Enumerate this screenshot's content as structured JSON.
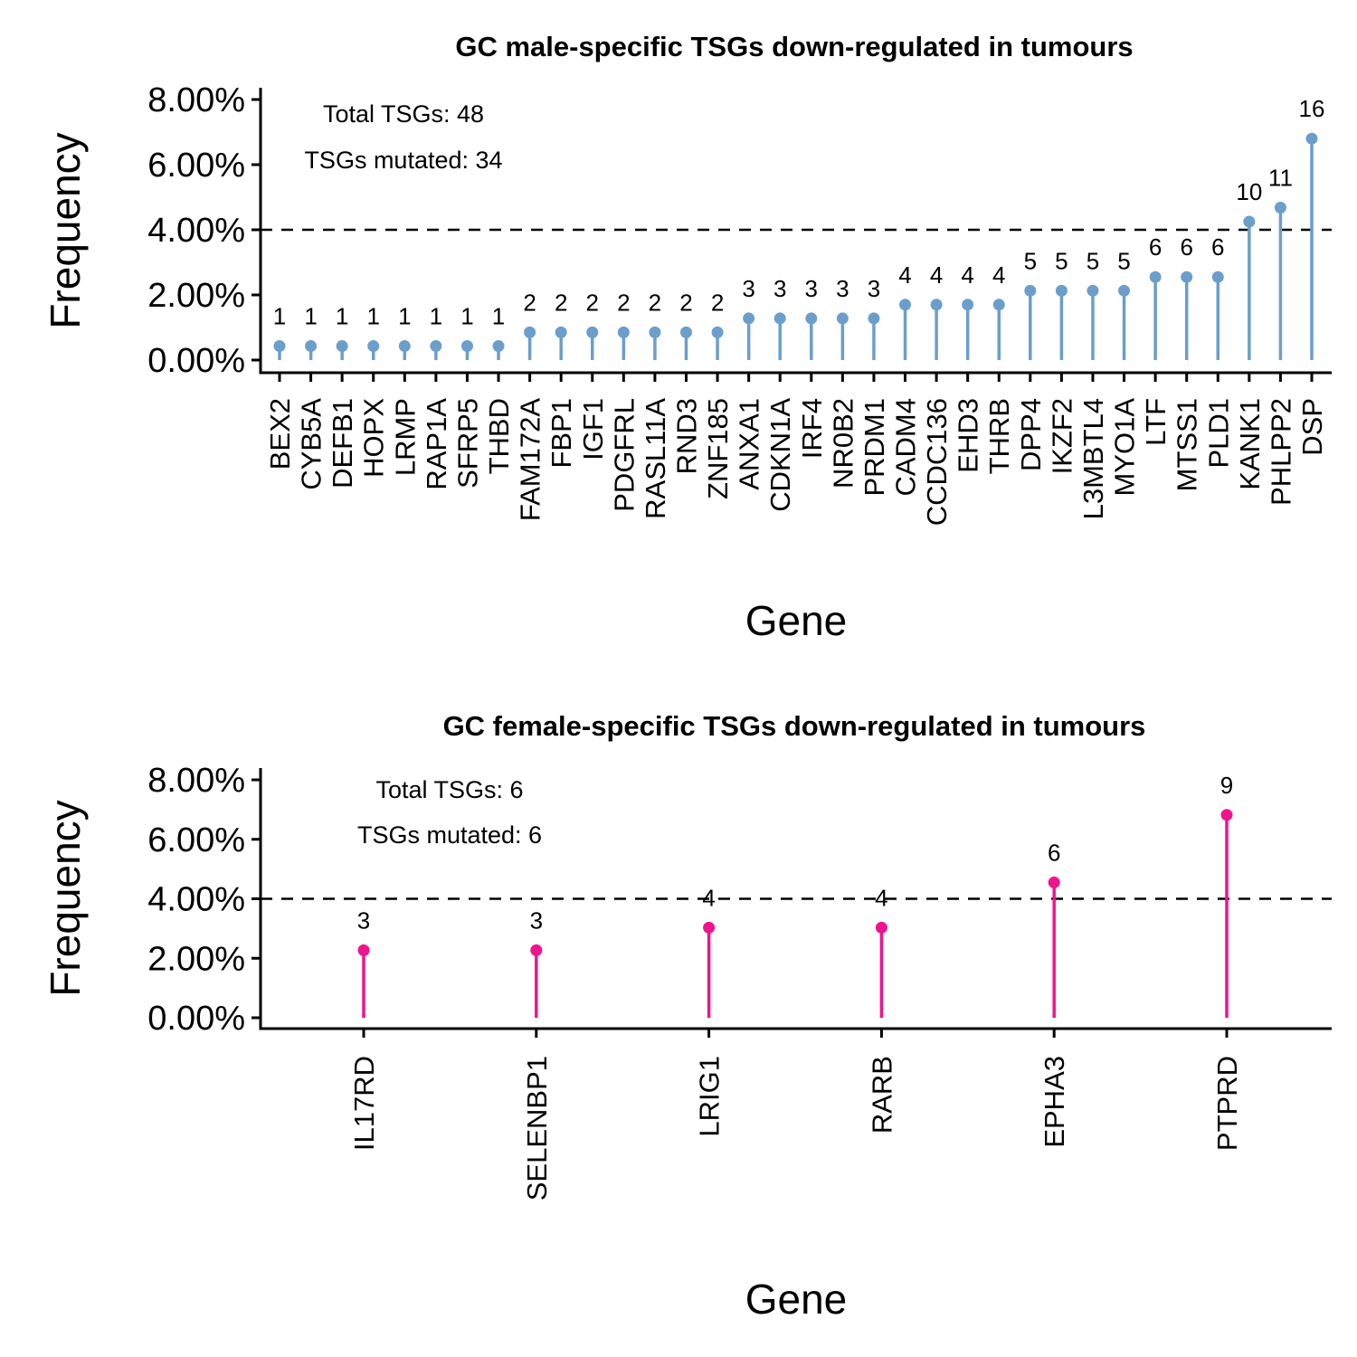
{
  "chart_data": [
    {
      "type": "lollipop",
      "title": "GC male-specific TSGs down-regulated in tumours",
      "xlabel": "Gene",
      "ylabel": "Frequency",
      "ylim": [
        0,
        0.08
      ],
      "y_ticks": [
        "0.00%",
        "2.00%",
        "4.00%",
        "6.00%",
        "8.00%"
      ],
      "threshold": 0.04,
      "color": "#6b9ecb",
      "annotations": [
        "Total TSGs:  48",
        "TSGs mutated:  34"
      ],
      "categories": [
        "BEX2",
        "CYB5A",
        "DEFB1",
        "HOPX",
        "LRMP",
        "RAP1A",
        "SFRP5",
        "THBD",
        "FAM172A",
        "FBP1",
        "IGF1",
        "PDGFRL",
        "RASL11A",
        "RND3",
        "ZNF185",
        "ANXA1",
        "CDKN1A",
        "IRF4",
        "NR0B2",
        "PRDM1",
        "CADM4",
        "CCDC136",
        "EHD3",
        "THRB",
        "DPP4",
        "IKZF2",
        "L3MBTL4",
        "MYO1A",
        "LTF",
        "MTSS1",
        "PLD1",
        "KANK1",
        "PHLPP2",
        "DSP"
      ],
      "values": [
        0.0043,
        0.0043,
        0.0043,
        0.0043,
        0.0043,
        0.0043,
        0.0043,
        0.0043,
        0.0085,
        0.0085,
        0.0085,
        0.0085,
        0.0085,
        0.0085,
        0.0085,
        0.0128,
        0.0128,
        0.0128,
        0.0128,
        0.0128,
        0.017,
        0.017,
        0.017,
        0.017,
        0.0213,
        0.0213,
        0.0213,
        0.0213,
        0.0255,
        0.0255,
        0.0255,
        0.0425,
        0.0468,
        0.068
      ],
      "labels": [
        "1",
        "1",
        "1",
        "1",
        "1",
        "1",
        "1",
        "1",
        "2",
        "2",
        "2",
        "2",
        "2",
        "2",
        "2",
        "3",
        "3",
        "3",
        "3",
        "3",
        "4",
        "4",
        "4",
        "4",
        "5",
        "5",
        "5",
        "5",
        "6",
        "6",
        "6",
        "10",
        "11",
        "16"
      ]
    },
    {
      "type": "lollipop",
      "title": "GC female-specific TSGs down-regulated in tumours",
      "xlabel": "Gene",
      "ylabel": "Frequency",
      "ylim": [
        0,
        0.08
      ],
      "y_ticks": [
        "0.00%",
        "2.00%",
        "4.00%",
        "6.00%",
        "8.00%"
      ],
      "threshold": 0.04,
      "color": "#f0138f",
      "annotations": [
        "Total TSGs:  6",
        "TSGs mutated:  6"
      ],
      "categories": [
        "IL17RD",
        "SELENBP1",
        "LRIG1",
        "RARB",
        "EPHA3",
        "PTPRD"
      ],
      "values": [
        0.0227,
        0.0227,
        0.0303,
        0.0303,
        0.0455,
        0.0682
      ],
      "labels": [
        "3",
        "3",
        "4",
        "4",
        "6",
        "9"
      ]
    }
  ]
}
